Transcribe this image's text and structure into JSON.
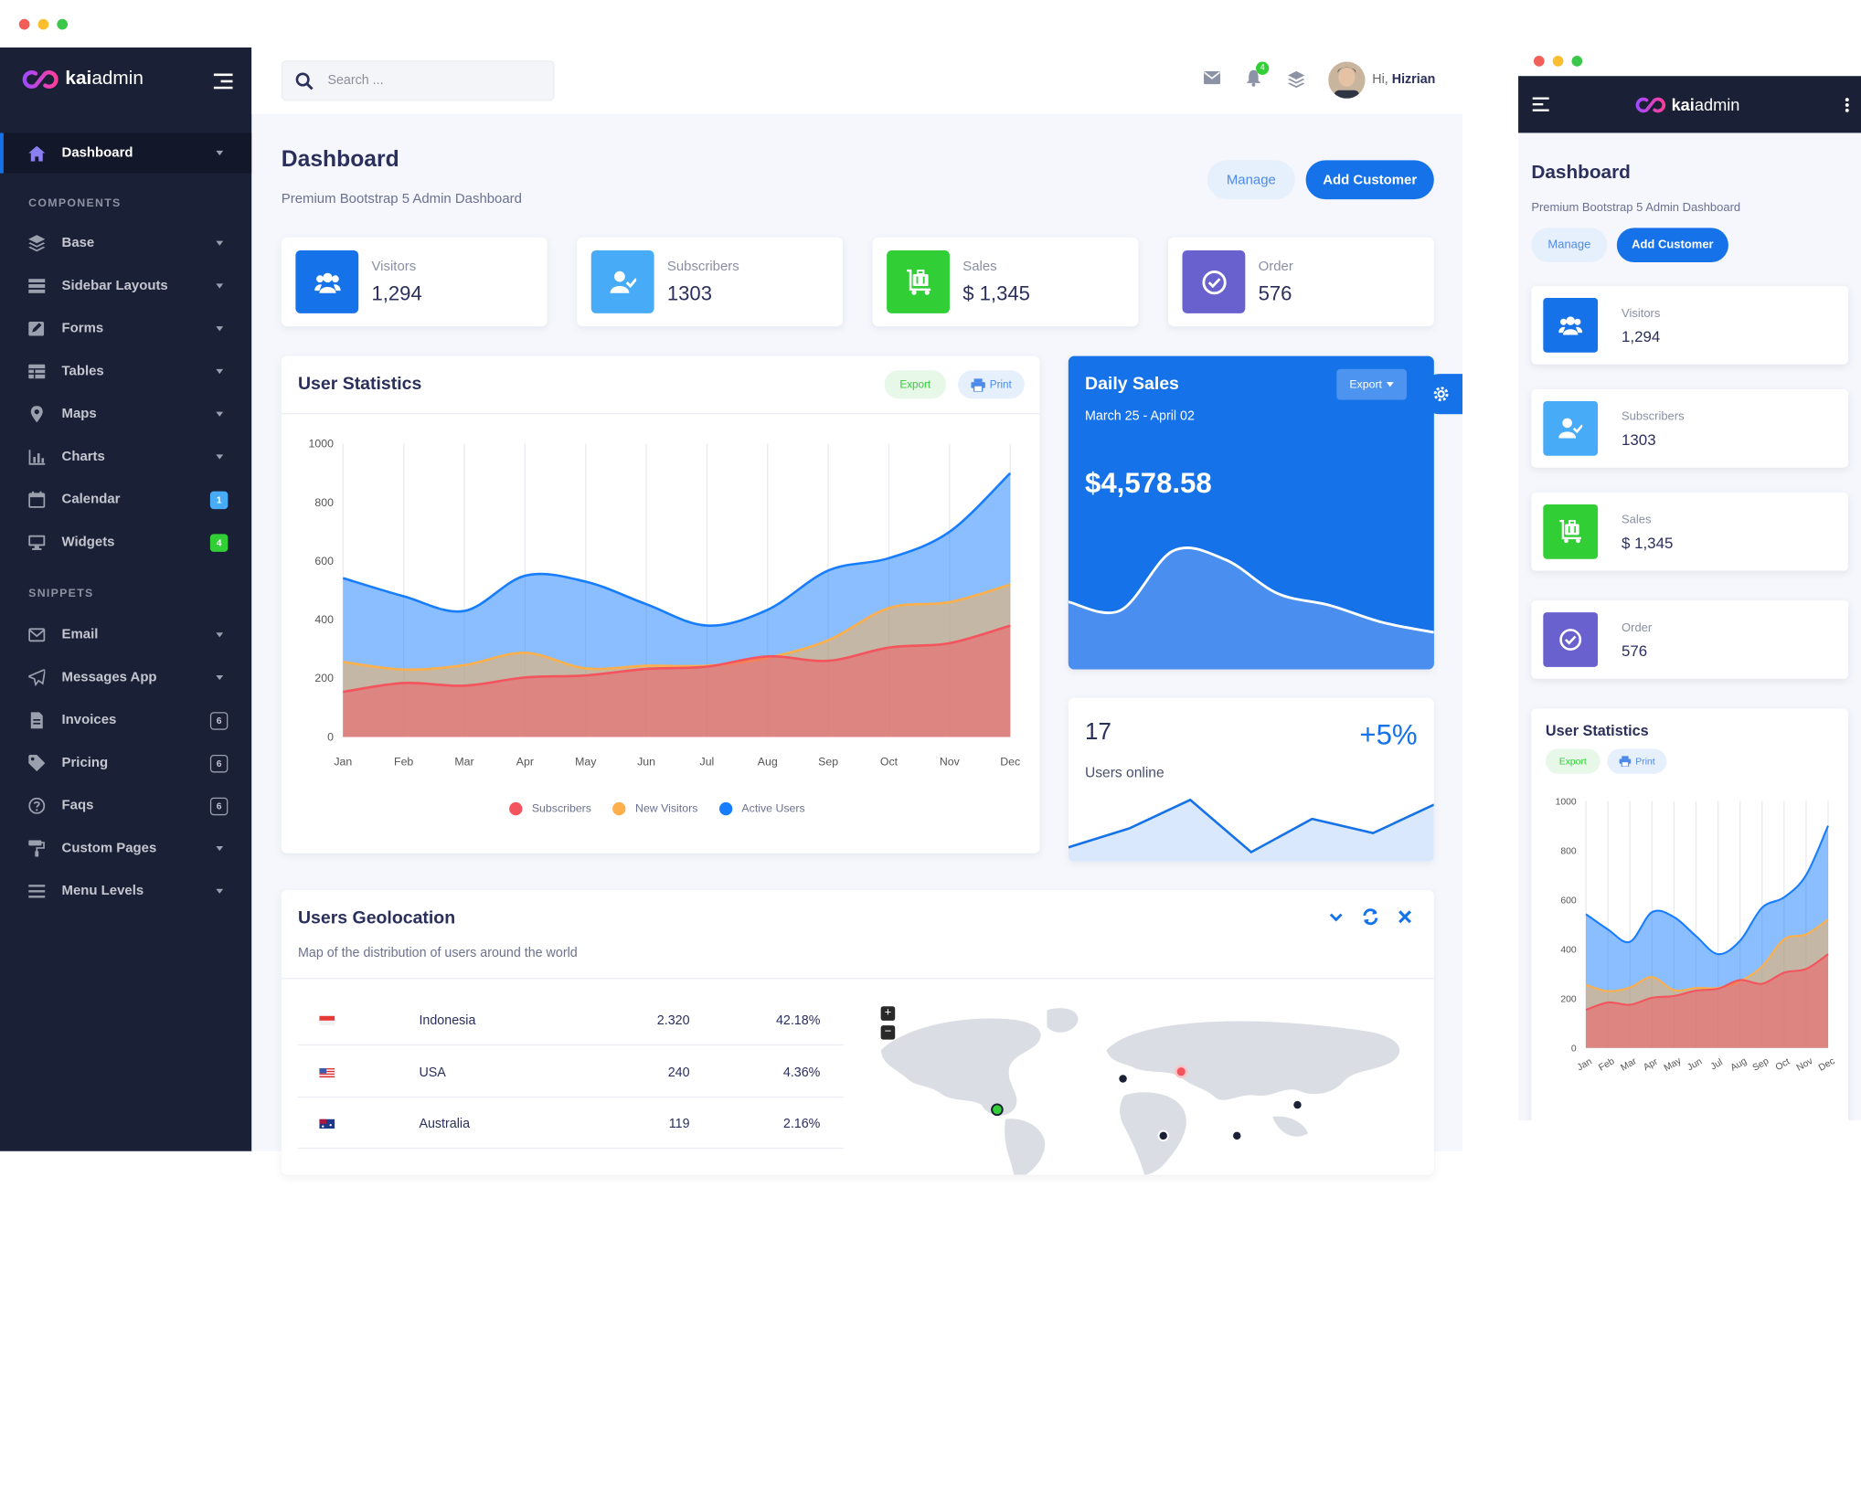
{
  "sidebar": {
    "brand_a": "kai",
    "brand_b": "admin",
    "active_item": "Dashboard",
    "section_components": "COMPONENTS",
    "section_snippets": "SNIPPETS",
    "components": [
      {
        "label": "Base",
        "icon": "layers-icon"
      },
      {
        "label": "Sidebar Layouts",
        "icon": "th-list-icon"
      },
      {
        "label": "Forms",
        "icon": "pen-square-icon"
      },
      {
        "label": "Tables",
        "icon": "table-icon"
      },
      {
        "label": "Maps",
        "icon": "map-marker-icon"
      },
      {
        "label": "Charts",
        "icon": "bar-chart-icon"
      },
      {
        "label": "Calendar",
        "icon": "calendar-icon",
        "badge": "1"
      },
      {
        "label": "Widgets",
        "icon": "desktop-icon",
        "badge": "4"
      }
    ],
    "snippets": [
      {
        "label": "Email",
        "icon": "envelope-icon"
      },
      {
        "label": "Messages App",
        "icon": "paper-plane-icon"
      },
      {
        "label": "Invoices",
        "icon": "file-invoice-icon",
        "badge": "6"
      },
      {
        "label": "Pricing",
        "icon": "tag-icon",
        "badge": "6"
      },
      {
        "label": "Faqs",
        "icon": "question-circle-icon",
        "badge": "6"
      },
      {
        "label": "Custom Pages",
        "icon": "paint-roller-icon"
      },
      {
        "label": "Menu Levels",
        "icon": "bars-icon"
      }
    ]
  },
  "topbar": {
    "search_placeholder": "Search ...",
    "notification_count": "4",
    "greeting": "Hi,",
    "username": "Hizrian"
  },
  "page": {
    "title": "Dashboard",
    "subtitle": "Premium Bootstrap 5 Admin Dashboard",
    "manage_label": "Manage",
    "add_customer_label": "Add Customer"
  },
  "stats": [
    {
      "label": "Visitors",
      "value": "1,294",
      "color": "#1572e8",
      "icon": "users-icon"
    },
    {
      "label": "Subscribers",
      "value": "1303",
      "color": "#48abf7",
      "icon": "user-check-icon"
    },
    {
      "label": "Sales",
      "value": "$ 1,345",
      "color": "#31ce36",
      "icon": "luggage-cart-icon"
    },
    {
      "label": "Order",
      "value": "576",
      "color": "#6861ce",
      "icon": "check-circle-icon"
    }
  ],
  "user_statistics": {
    "title": "User Statistics",
    "export_label": "Export",
    "print_label": "Print"
  },
  "chart_data": [
    {
      "type": "area",
      "title": "User Statistics",
      "categories": [
        "Jan",
        "Feb",
        "Mar",
        "Apr",
        "May",
        "Jun",
        "Jul",
        "Aug",
        "Sep",
        "Oct",
        "Nov",
        "Dec"
      ],
      "ylim": [
        0,
        1000
      ],
      "yticks": [
        0,
        200,
        400,
        600,
        800,
        1000
      ],
      "grid": true,
      "legend": "bottom",
      "series": [
        {
          "name": "Subscribers",
          "color": "#f3545d",
          "values": [
            154,
            184,
            175,
            203,
            210,
            232,
            240,
            275,
            260,
            305,
            320,
            380
          ]
        },
        {
          "name": "New Visitors",
          "color": "#fdaf4b",
          "values": [
            256,
            230,
            245,
            287,
            234,
            243,
            243,
            270,
            330,
            440,
            460,
            520
          ]
        },
        {
          "name": "Active Users",
          "color": "#177dff",
          "values": [
            542,
            480,
            430,
            550,
            530,
            453,
            380,
            434,
            568,
            610,
            700,
            900
          ]
        }
      ]
    },
    {
      "type": "area",
      "title": "Daily Sales",
      "values": [
        30,
        25,
        60,
        55,
        35,
        28,
        18,
        12
      ]
    },
    {
      "type": "line",
      "title": "Users online",
      "values": [
        2,
        6,
        12,
        1,
        8,
        5,
        11
      ]
    }
  ],
  "daily_sales": {
    "title": "Daily Sales",
    "export_label": "Export",
    "date_range": "March 25 - April 02",
    "amount": "$4,578.58"
  },
  "users_online": {
    "count": "17",
    "change": "+5%",
    "label": "Users online"
  },
  "geolocation": {
    "title": "Users Geolocation",
    "subtitle": "Map of the distribution of users around the world",
    "rows": [
      {
        "country": "Indonesia",
        "users": "2.320",
        "percent": "42.18%"
      },
      {
        "country": "USA",
        "users": "240",
        "percent": "4.36%"
      },
      {
        "country": "Australia",
        "users": "119",
        "percent": "2.16%"
      }
    ],
    "zoom_in": "+",
    "zoom_out": "−"
  },
  "colors": {
    "sidebar_bg": "#1a2035",
    "primary": "#1572e8",
    "success": "#31ce36"
  }
}
